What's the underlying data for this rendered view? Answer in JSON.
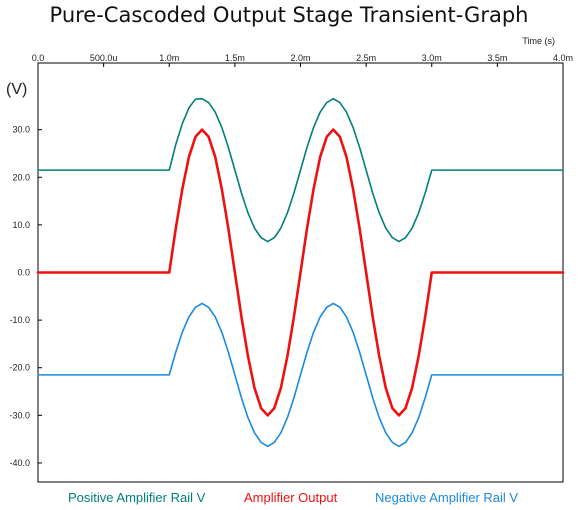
{
  "chart_data": {
    "type": "line",
    "title": "Pure-Cascoded Output Stage Transient-Graph",
    "xlabel": "Time  (s)",
    "ylabel": "(V)",
    "xlim": [
      0,
      0.004
    ],
    "ylim": [
      -44,
      44
    ],
    "grid": false,
    "x_ticks": [
      0,
      0.0005,
      0.001,
      0.0015,
      0.002,
      0.0025,
      0.003,
      0.0035,
      0.004
    ],
    "x_tick_labels": [
      "0.0",
      "500.0u",
      "1.0m",
      "1.5m",
      "2.0m",
      "2.5m",
      "3.0m",
      "3.5m",
      "4.0m"
    ],
    "y_ticks": [
      30,
      20,
      10,
      0,
      -10,
      -20,
      -30,
      -40
    ],
    "y_tick_labels": [
      "30.0",
      "20.0",
      "10.0",
      "0.0",
      "-10.0",
      "-20.0",
      "-30.0",
      "-40.0"
    ],
    "legend_position": "bottom",
    "series": [
      {
        "name": "Positive Amplifier Rail V",
        "color": "#00807a",
        "x": [
          0,
          0.001,
          0.00105,
          0.0011,
          0.00115,
          0.0012,
          0.00125,
          0.0013,
          0.00135,
          0.0014,
          0.00145,
          0.0015,
          0.00155,
          0.0016,
          0.00165,
          0.0017,
          0.00175,
          0.0018,
          0.00185,
          0.0019,
          0.00195,
          0.002,
          0.00205,
          0.0021,
          0.00215,
          0.0022,
          0.00225,
          0.0023,
          0.00235,
          0.0024,
          0.00245,
          0.0025,
          0.00255,
          0.0026,
          0.00265,
          0.0027,
          0.00275,
          0.0028,
          0.00285,
          0.0029,
          0.00295,
          0.003,
          0.004
        ],
        "y": [
          21.5,
          21.5,
          26.9,
          31.3,
          34.6,
          36.4,
          36.5,
          35.7,
          33.7,
          30.5,
          26.3,
          21.5,
          16.7,
          12.5,
          9.3,
          7.3,
          6.5,
          7.3,
          9.3,
          12.5,
          16.7,
          21.5,
          26.3,
          30.5,
          33.7,
          35.7,
          36.5,
          35.7,
          33.7,
          30.5,
          26.3,
          21.5,
          16.7,
          12.5,
          9.3,
          7.3,
          6.5,
          7.3,
          9.3,
          12.5,
          16.7,
          21.5,
          21.5
        ]
      },
      {
        "name": "Amplifier Output",
        "color": "#ee1111",
        "x": [
          0,
          0.001,
          0.00105,
          0.0011,
          0.00115,
          0.0012,
          0.00125,
          0.0013,
          0.00135,
          0.0014,
          0.00145,
          0.0015,
          0.00155,
          0.0016,
          0.00165,
          0.0017,
          0.00175,
          0.0018,
          0.00185,
          0.0019,
          0.00195,
          0.002,
          0.00205,
          0.0021,
          0.00215,
          0.0022,
          0.00225,
          0.0023,
          0.00235,
          0.0024,
          0.00245,
          0.0025,
          0.00255,
          0.0026,
          0.00265,
          0.0027,
          0.00275,
          0.0028,
          0.00285,
          0.0029,
          0.00295,
          0.003,
          0.004
        ],
        "y": [
          0,
          0,
          9.3,
          17.6,
          24.3,
          28.5,
          30,
          28.5,
          24.3,
          17.6,
          9.3,
          0,
          -9.3,
          -17.6,
          -24.3,
          -28.5,
          -30,
          -28.5,
          -24.3,
          -17.6,
          -9.3,
          0,
          9.3,
          17.6,
          24.3,
          28.5,
          30,
          28.5,
          24.3,
          17.6,
          9.3,
          0,
          -9.3,
          -17.6,
          -24.3,
          -28.5,
          -30,
          -28.5,
          -24.3,
          -17.6,
          -9.3,
          0,
          0
        ]
      },
      {
        "name": "Negative Amplifier Rail V",
        "color": "#1a8ae0",
        "x": [
          0,
          0.001,
          0.00105,
          0.0011,
          0.00115,
          0.0012,
          0.00125,
          0.0013,
          0.00135,
          0.0014,
          0.00145,
          0.0015,
          0.00155,
          0.0016,
          0.00165,
          0.0017,
          0.00175,
          0.0018,
          0.00185,
          0.0019,
          0.00195,
          0.002,
          0.00205,
          0.0021,
          0.00215,
          0.0022,
          0.00225,
          0.0023,
          0.00235,
          0.0024,
          0.00245,
          0.0025,
          0.00255,
          0.0026,
          0.00265,
          0.0027,
          0.00275,
          0.0028,
          0.00285,
          0.0029,
          0.00295,
          0.003,
          0.004
        ],
        "y": [
          -21.5,
          -21.5,
          -16.7,
          -12.5,
          -9.3,
          -7.3,
          -6.5,
          -7.3,
          -9.3,
          -12.5,
          -16.7,
          -21.5,
          -26.3,
          -30.5,
          -33.7,
          -35.7,
          -36.5,
          -35.7,
          -33.7,
          -30.5,
          -26.3,
          -21.5,
          -16.7,
          -12.5,
          -9.3,
          -7.3,
          -6.5,
          -7.3,
          -9.3,
          -12.5,
          -16.7,
          -21.5,
          -26.3,
          -30.5,
          -33.7,
          -35.7,
          -36.5,
          -35.7,
          -33.7,
          -30.5,
          -26.3,
          -21.5,
          -21.5
        ]
      }
    ]
  }
}
